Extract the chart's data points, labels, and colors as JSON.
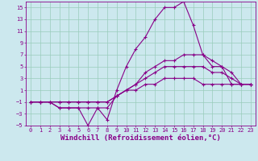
{
  "xlabel": "Windchill (Refroidissement éolien,°C)",
  "background_color": "#cce8ee",
  "grid_color": "#99ccbb",
  "line_color": "#880088",
  "x": [
    0,
    1,
    2,
    3,
    4,
    5,
    6,
    7,
    8,
    9,
    10,
    11,
    12,
    13,
    14,
    15,
    16,
    17,
    18,
    19,
    20,
    21,
    22,
    23
  ],
  "line1": [
    -1,
    -1,
    -1,
    -2,
    -2,
    -2,
    -5,
    -2,
    -4,
    1,
    5,
    8,
    10,
    13,
    15,
    15,
    16,
    12,
    7,
    5,
    5,
    2,
    2,
    2
  ],
  "line2": [
    -1,
    -1,
    -1,
    -2,
    -2,
    -2,
    -2,
    -2,
    -2,
    0,
    1,
    2,
    4,
    5,
    6,
    6,
    7,
    7,
    7,
    6,
    5,
    4,
    2,
    2
  ],
  "line3": [
    -1,
    -1,
    -1,
    -1,
    -1,
    -1,
    -1,
    -1,
    -1,
    0,
    1,
    2,
    3,
    4,
    5,
    5,
    5,
    5,
    5,
    4,
    4,
    3,
    2,
    2
  ],
  "line4": [
    -1,
    -1,
    -1,
    -1,
    -1,
    -1,
    -1,
    -1,
    -1,
    0,
    1,
    1,
    2,
    2,
    3,
    3,
    3,
    3,
    2,
    2,
    2,
    2,
    2,
    2
  ],
  "ylim": [
    -5,
    16
  ],
  "xlim": [
    -0.5,
    23.5
  ],
  "yticks": [
    -5,
    -3,
    -1,
    1,
    3,
    5,
    7,
    9,
    11,
    13,
    15
  ],
  "xticks": [
    0,
    1,
    2,
    3,
    4,
    5,
    6,
    7,
    8,
    9,
    10,
    11,
    12,
    13,
    14,
    15,
    16,
    17,
    18,
    19,
    20,
    21,
    22,
    23
  ],
  "marker": "+",
  "linewidth": 0.8,
  "markersize": 3,
  "markeredgewidth": 0.8,
  "tick_fontsize": 5,
  "xlabel_fontsize": 6.5
}
